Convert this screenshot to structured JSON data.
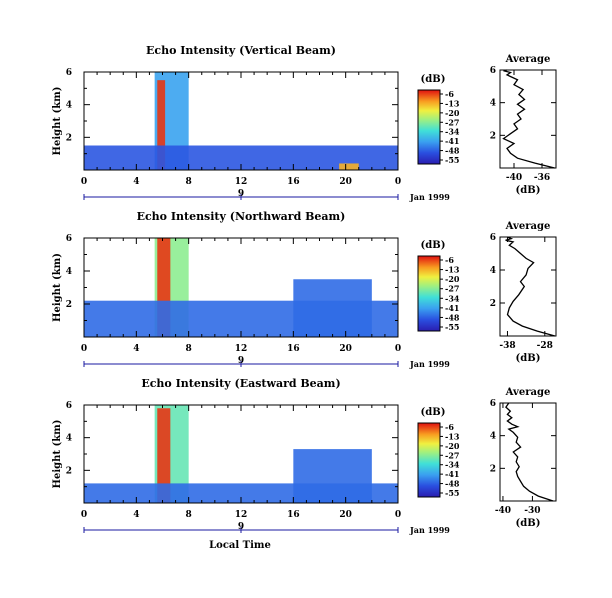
{
  "figure": {
    "xlabel": "Local Time",
    "date_label": "Jan 1999",
    "colorbar_unit": "(dB)",
    "colorbar_ticks": [
      "-6",
      "-13",
      "-20",
      "-27",
      "-34",
      "-41",
      "-48",
      "-55"
    ],
    "avg_title": "Average",
    "avg_xlabel": "(dB)"
  },
  "chart_data": [
    {
      "type": "heatmap",
      "title": "Echo Intensity (Vertical Beam)",
      "ylabel": "Height (km)",
      "x_ticks": [
        "0",
        "4",
        "8",
        "12",
        "16",
        "20",
        "0"
      ],
      "y_ticks": [
        "2",
        "4",
        "6"
      ],
      "day_tick": "9",
      "xlim": [
        0,
        24
      ],
      "ylim": [
        0,
        6
      ],
      "colorbar_range": [
        -55,
        -6
      ],
      "echo_regions": [
        {
          "t0": 5.4,
          "t1": 8.0,
          "h0": 0.0,
          "h1": 6.0,
          "db": -40
        },
        {
          "t0": 5.6,
          "t1": 6.2,
          "h0": 0.0,
          "h1": 5.5,
          "db": -8
        },
        {
          "t0": 0.0,
          "t1": 24.0,
          "h0": 0.0,
          "h1": 1.5,
          "db": -47
        },
        {
          "t0": 19.5,
          "t1": 21.0,
          "h0": 0.0,
          "h1": 0.4,
          "db": -15
        }
      ]
    },
    {
      "type": "heatmap",
      "title": "Echo Intensity (Northward Beam)",
      "ylabel": "Height (km)",
      "x_ticks": [
        "0",
        "4",
        "8",
        "12",
        "16",
        "20",
        "0"
      ],
      "y_ticks": [
        "2",
        "4",
        "6"
      ],
      "day_tick": "9",
      "xlim": [
        0,
        24
      ],
      "ylim": [
        0,
        6
      ],
      "colorbar_range": [
        -55,
        -6
      ],
      "echo_regions": [
        {
          "t0": 5.4,
          "t1": 8.0,
          "h0": 0.0,
          "h1": 6.0,
          "db": -27
        },
        {
          "t0": 5.6,
          "t1": 6.6,
          "h0": 0.0,
          "h1": 6.0,
          "db": -8
        },
        {
          "t0": 0.0,
          "t1": 24.0,
          "h0": 0.0,
          "h1": 2.2,
          "db": -45
        },
        {
          "t0": 16.0,
          "t1": 22.0,
          "h0": 0.0,
          "h1": 3.5,
          "db": -45
        }
      ]
    },
    {
      "type": "heatmap",
      "title": "Echo Intensity (Eastward Beam)",
      "ylabel": "Height (km)",
      "x_ticks": [
        "0",
        "4",
        "8",
        "12",
        "16",
        "20",
        "0"
      ],
      "y_ticks": [
        "2",
        "4",
        "6"
      ],
      "day_tick": "9",
      "xlim": [
        0,
        24
      ],
      "ylim": [
        0,
        6
      ],
      "colorbar_range": [
        -55,
        -6
      ],
      "echo_regions": [
        {
          "t0": 5.4,
          "t1": 8.0,
          "h0": 0.0,
          "h1": 6.0,
          "db": -30
        },
        {
          "t0": 5.6,
          "t1": 6.6,
          "h0": 0.0,
          "h1": 5.8,
          "db": -8
        },
        {
          "t0": 0.0,
          "t1": 24.0,
          "h0": 0.0,
          "h1": 1.2,
          "db": -45
        },
        {
          "t0": 16.0,
          "t1": 22.0,
          "h0": 0.0,
          "h1": 3.3,
          "db": -45
        }
      ]
    },
    {
      "type": "line",
      "title": "Average",
      "xlabel": "(dB)",
      "x_ticks": [
        "-40",
        "-36"
      ],
      "y_ticks": [
        "2",
        "4",
        "6"
      ],
      "xlim": [
        -42,
        -34
      ],
      "ylim": [
        0,
        6
      ],
      "x": [
        -34.2,
        -37,
        -39.5,
        -40.5,
        -41,
        -40,
        -41.5,
        -40.5,
        -39.5,
        -40,
        -39,
        -39.5,
        -38.5,
        -39.5,
        -38.5,
        -39.3,
        -38.7,
        -40,
        -39.5,
        -41,
        -40.5,
        -41.5,
        -41
      ],
      "y": [
        0.0,
        0.3,
        0.6,
        0.9,
        1.2,
        1.5,
        1.8,
        2.1,
        2.4,
        2.7,
        3.0,
        3.3,
        3.6,
        3.9,
        4.2,
        4.5,
        4.8,
        5.1,
        5.4,
        5.7,
        5.85,
        5.95,
        6.0
      ]
    },
    {
      "type": "line",
      "title": "Average",
      "xlabel": "(dB)",
      "x_ticks": [
        "-38",
        "-28"
      ],
      "y_ticks": [
        "2",
        "4",
        "6"
      ],
      "xlim": [
        -40,
        -25
      ],
      "ylim": [
        0,
        6
      ],
      "x": [
        -25.3,
        -30,
        -34,
        -36.5,
        -38,
        -37.5,
        -36.5,
        -35,
        -33.5,
        -34.5,
        -33,
        -32.5,
        -31,
        -33,
        -34.5,
        -36,
        -37.5,
        -36.5,
        -38.5,
        -37,
        -38
      ],
      "y": [
        0.0,
        0.3,
        0.6,
        0.9,
        1.3,
        1.7,
        2.1,
        2.5,
        3.0,
        3.3,
        3.7,
        4.1,
        4.45,
        4.7,
        5.0,
        5.3,
        5.5,
        5.7,
        5.8,
        5.9,
        6.0
      ]
    },
    {
      "type": "line",
      "title": "Average",
      "xlabel": "(dB)",
      "x_ticks": [
        "-40",
        "-30"
      ],
      "y_ticks": [
        "2",
        "4",
        "6"
      ],
      "xlim": [
        -41,
        -22
      ],
      "ylim": [
        0,
        6
      ],
      "x": [
        -23,
        -28,
        -31,
        -33,
        -34,
        -35,
        -35.5,
        -34.5,
        -35.5,
        -35,
        -36.5,
        -34,
        -35.5,
        -35,
        -36.5,
        -38,
        -35,
        -37,
        -38.5,
        -37,
        -38.5,
        -37.5,
        -39,
        -38
      ],
      "y": [
        0.0,
        0.3,
        0.6,
        0.9,
        1.2,
        1.5,
        1.8,
        2.1,
        2.4,
        2.7,
        3.0,
        3.3,
        3.6,
        3.9,
        4.2,
        4.4,
        4.55,
        4.7,
        4.9,
        5.1,
        5.3,
        5.5,
        5.75,
        6.0
      ]
    }
  ]
}
